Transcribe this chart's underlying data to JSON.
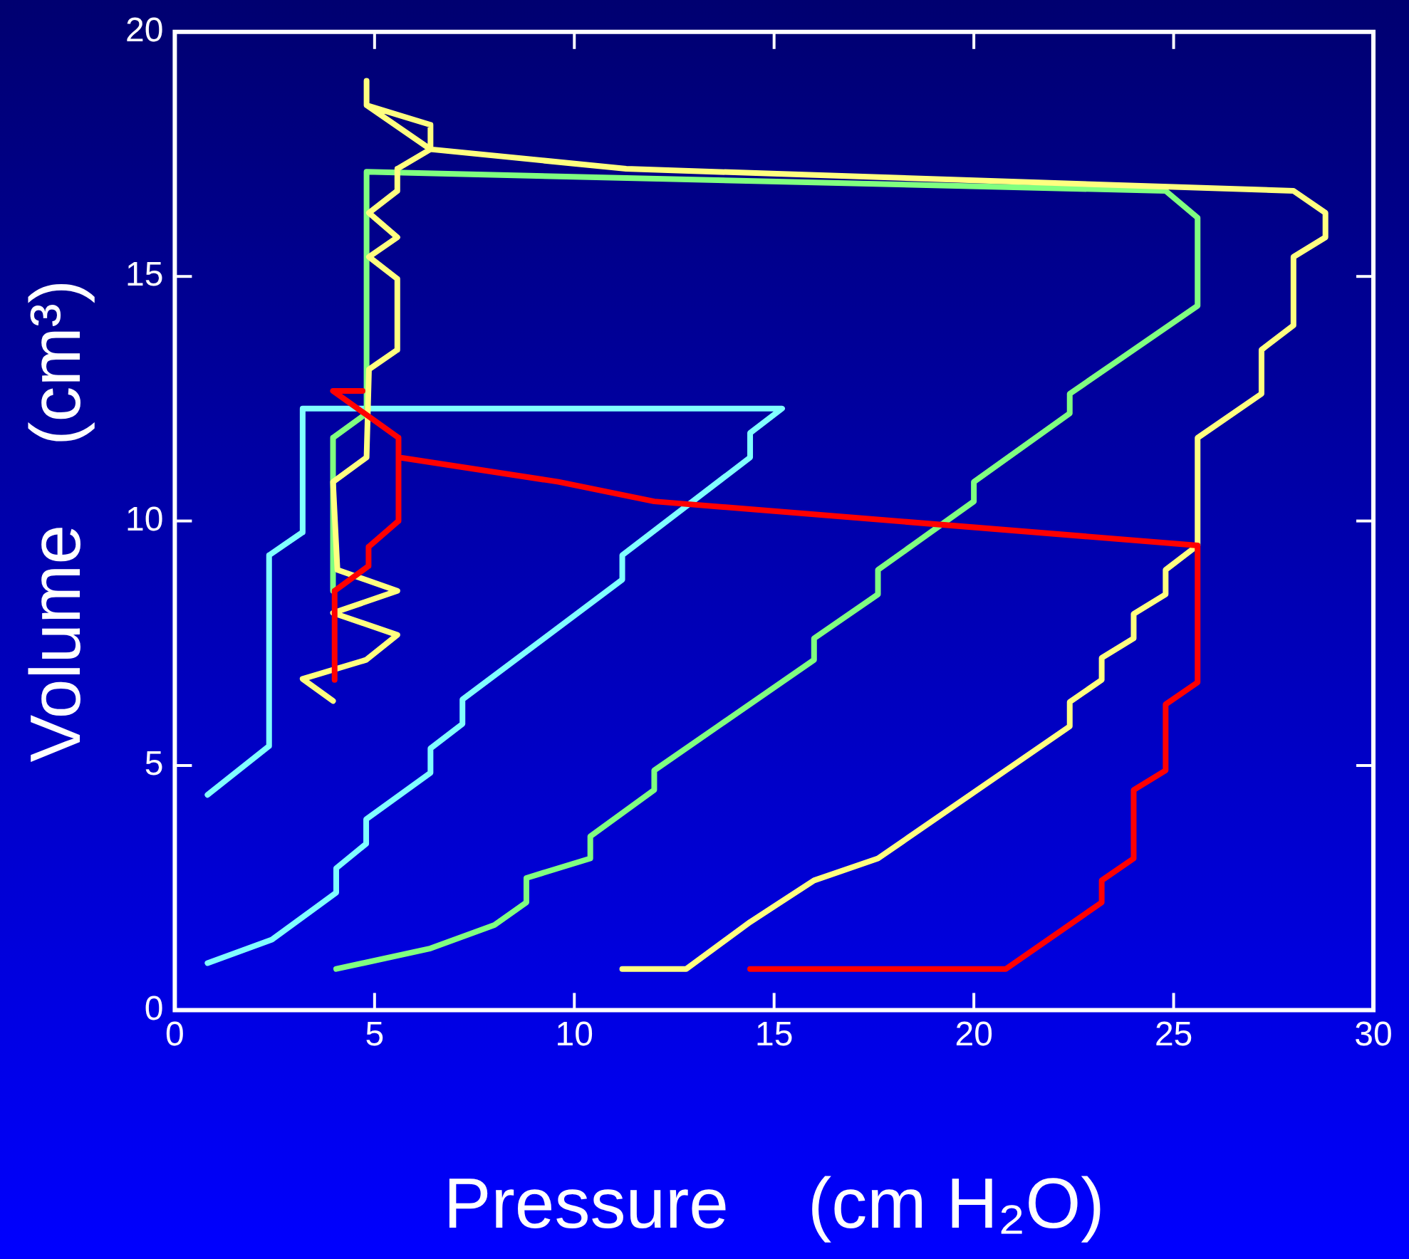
{
  "chart_data": {
    "type": "line",
    "xlabel": "Pressure    (cm H₂O)",
    "ylabel": "Volume    (cm³)",
    "xlim": [
      0,
      30
    ],
    "xticks": [
      0,
      5,
      10,
      15,
      20,
      25,
      30
    ],
    "ylim": [
      0,
      20
    ],
    "yticks": [
      0,
      5,
      10,
      15,
      20
    ],
    "marker": "none",
    "line_style": "solid",
    "series": [
      {
        "color": "#ff0000",
        "x": [
          14.4,
          20.8,
          23.2,
          23.2,
          24.0,
          24.0,
          24.8,
          24.8,
          25.6,
          25.6,
          12.0,
          9.6,
          5.6,
          5.6,
          3.96,
          4.7,
          3.96,
          5.6,
          5.6,
          4.85,
          4.85,
          4.0,
          4.0
        ],
        "values": [
          0.84,
          0.84,
          2.2,
          2.65,
          3.1,
          4.5,
          4.9,
          6.25,
          6.7,
          9.5,
          10.4,
          10.8,
          11.3,
          11.7,
          12.66,
          12.66,
          12.66,
          11.7,
          10.0,
          9.47,
          9.08,
          8.57,
          6.75
        ]
      },
      {
        "color": "#ffff80",
        "x": [
          11.2,
          12.8,
          14.4,
          16.0,
          17.6,
          22.4,
          22.4,
          23.2,
          23.2,
          24.0,
          24.0,
          24.8,
          24.8,
          25.6,
          25.6,
          27.2,
          27.2,
          28.0,
          28.0,
          28.8,
          28.8,
          28.0,
          11.3,
          6.4,
          4.8,
          4.8,
          4.8,
          6.4,
          6.4,
          5.57,
          5.57,
          4.86,
          5.57,
          4.86,
          5.57,
          5.57,
          4.86,
          4.8,
          3.96,
          4.07,
          5.57,
          3.96,
          5.57,
          4.79,
          3.2,
          3.96
        ],
        "values": [
          0.84,
          0.84,
          1.8,
          2.65,
          3.1,
          5.8,
          6.3,
          6.75,
          7.2,
          7.6,
          8.1,
          8.5,
          9.0,
          9.5,
          11.7,
          12.6,
          13.5,
          14.0,
          15.4,
          15.8,
          16.3,
          16.75,
          17.2,
          17.6,
          18.5,
          19.0,
          18.5,
          18.1,
          17.6,
          17.2,
          16.75,
          16.3,
          15.8,
          15.4,
          14.95,
          13.5,
          13.1,
          11.3,
          10.8,
          9.0,
          8.57,
          8.12,
          7.67,
          7.16,
          6.77,
          6.32
        ]
      },
      {
        "color": "#80ff80",
        "x": [
          4.04,
          6.4,
          8.0,
          8.8,
          8.8,
          10.4,
          10.4,
          12.0,
          12.0,
          16.0,
          16.0,
          17.6,
          17.6,
          20.0,
          20.0,
          22.4,
          22.4,
          25.6,
          25.6,
          24.8,
          4.8,
          4.8,
          3.96,
          3.96
        ],
        "values": [
          0.84,
          1.26,
          1.74,
          2.2,
          2.7,
          3.1,
          3.55,
          4.5,
          4.9,
          7.16,
          7.6,
          8.5,
          9.0,
          10.4,
          10.8,
          12.2,
          12.6,
          14.4,
          16.2,
          16.75,
          17.14,
          12.2,
          11.7,
          8.57
        ]
      },
      {
        "color": "#80ffff",
        "x": [
          0.82,
          2.43,
          4.04,
          4.04,
          4.79,
          4.79,
          6.4,
          6.4,
          7.2,
          7.2,
          11.2,
          11.2,
          14.4,
          14.4,
          15.2,
          3.2,
          3.2,
          2.36,
          2.36,
          0.82
        ],
        "values": [
          0.96,
          1.44,
          2.4,
          2.9,
          3.4,
          3.9,
          4.85,
          5.35,
          5.85,
          6.35,
          8.8,
          9.3,
          11.3,
          11.8,
          12.3,
          12.3,
          9.77,
          9.3,
          5.4,
          4.4
        ]
      }
    ]
  }
}
